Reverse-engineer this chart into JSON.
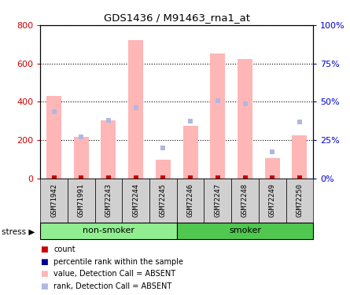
{
  "title": "GDS1436 / M91463_rna1_at",
  "samples": [
    "GSM71942",
    "GSM71991",
    "GSM72243",
    "GSM72244",
    "GSM72245",
    "GSM72246",
    "GSM72247",
    "GSM72248",
    "GSM72249",
    "GSM72250"
  ],
  "values_absent": [
    430,
    215,
    305,
    720,
    100,
    275,
    650,
    625,
    105,
    225
  ],
  "ranks_absent": [
    350,
    215,
    305,
    370,
    160,
    300,
    405,
    390,
    140,
    295
  ],
  "left_ylim": [
    0,
    800
  ],
  "right_ylim": [
    0,
    100
  ],
  "left_yticks": [
    0,
    200,
    400,
    600,
    800
  ],
  "right_yticks": [
    0,
    25,
    50,
    75,
    100
  ],
  "right_yticklabels": [
    "0%",
    "25%",
    "50%",
    "75%",
    "100%"
  ],
  "value_absent_color": "#FFB6B6",
  "rank_absent_color": "#B0B8E0",
  "count_color": "#CC0000",
  "percentile_color": "#000099",
  "non_smoker_color": "#90EE90",
  "smoker_color": "#50C850",
  "group_label_bg": "#D0D0D0",
  "left_tick_color": "#CC0000",
  "right_tick_color": "#0000CC",
  "legend_items": [
    {
      "color": "#CC0000",
      "label": "count"
    },
    {
      "color": "#000099",
      "label": "percentile rank within the sample"
    },
    {
      "color": "#FFB6B6",
      "label": "value, Detection Call = ABSENT"
    },
    {
      "color": "#B0B8E0",
      "label": "rank, Detection Call = ABSENT"
    }
  ]
}
